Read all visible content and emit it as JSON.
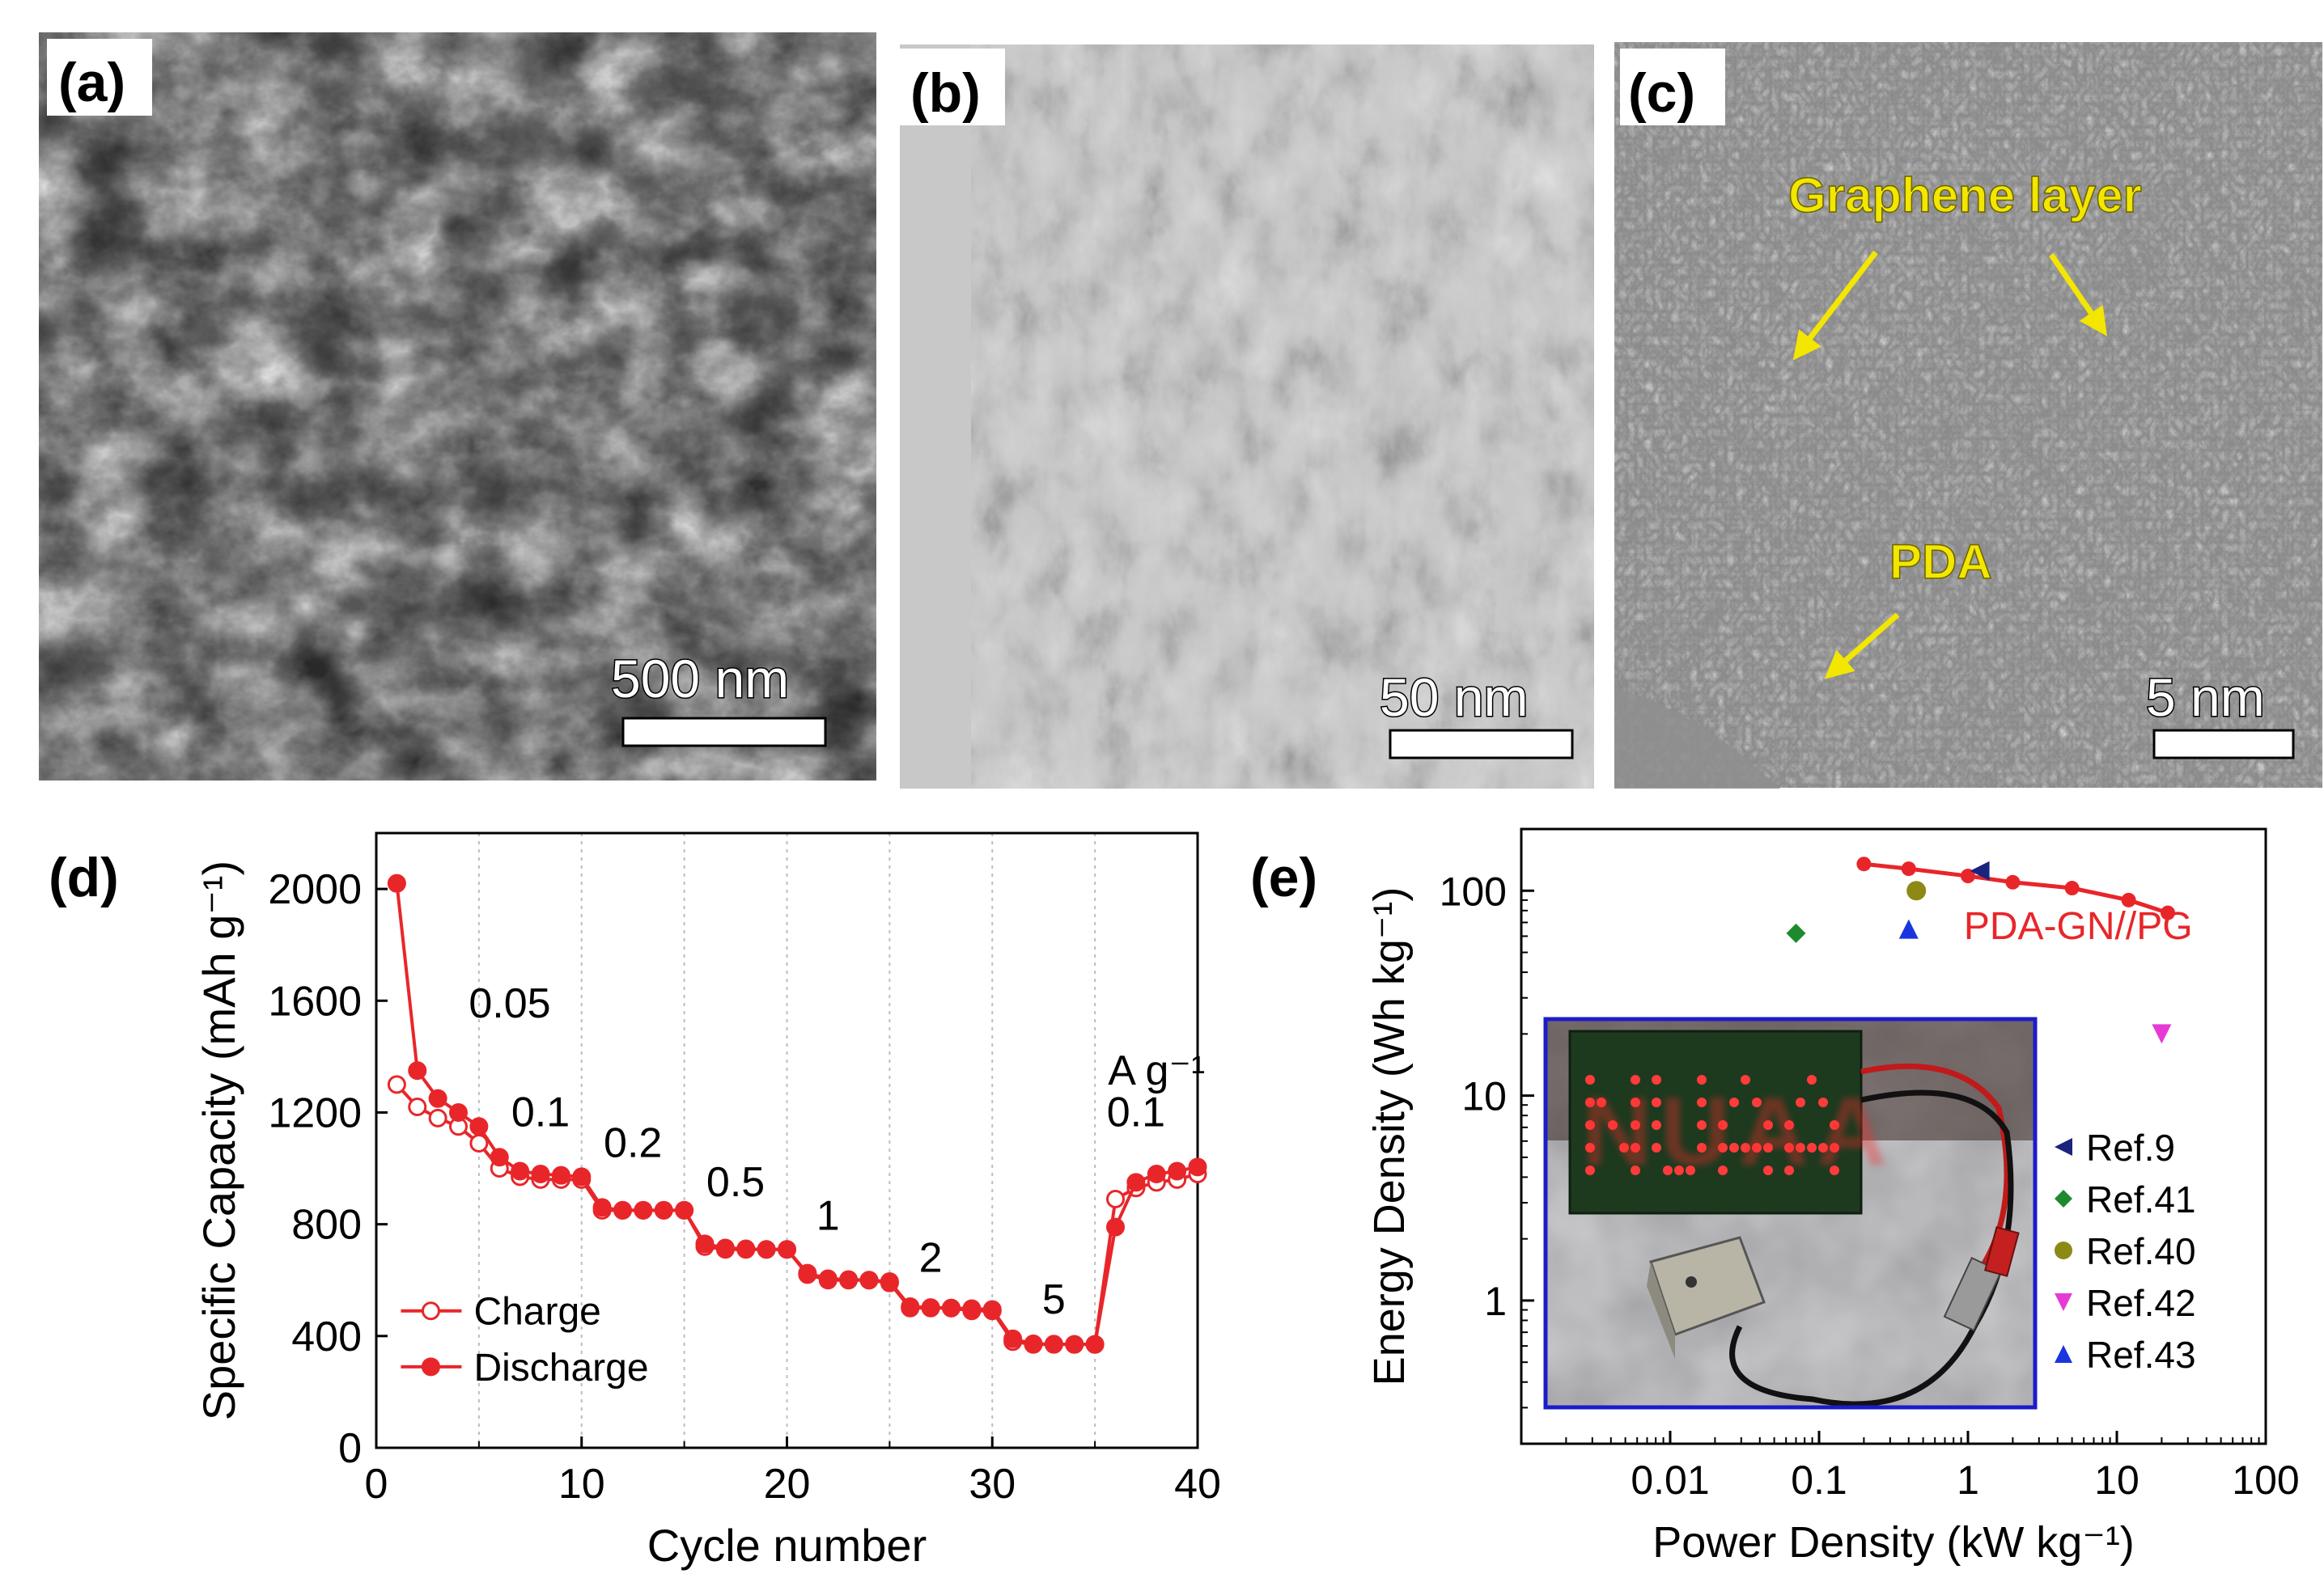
{
  "figure": {
    "panel_labels": {
      "a": "(a)",
      "b": "(b)",
      "c": "(c)",
      "d": "(d)",
      "e": "(e)"
    },
    "micrographs": {
      "a": {
        "scale_bar": "500 nm"
      },
      "b": {
        "scale_bar": "50 nm"
      },
      "c": {
        "scale_bar": "5 nm",
        "annotations": [
          "Graphene layer",
          "PDA"
        ]
      }
    },
    "inset_photo_text": "NUAA"
  },
  "chart_data": [
    {
      "type": "line",
      "xlabel": "Cycle number",
      "ylabel": "Specific Capacity (mAh g⁻¹)",
      "xlim": [
        0,
        40
      ],
      "ylim": [
        0,
        2200
      ],
      "xticks": [
        0,
        10,
        20,
        30,
        40
      ],
      "yticks": [
        0,
        400,
        800,
        1200,
        1600,
        2000
      ],
      "rate_labels": [
        "0.05",
        "0.1",
        "0.2",
        "0.5",
        "1",
        "2",
        "5",
        "0.1"
      ],
      "unit_label": "A g⁻¹",
      "legend_position": "bottom-left",
      "grid": "vertical dotted lines every 5 cycles",
      "x": [
        1,
        2,
        3,
        4,
        5,
        6,
        7,
        8,
        9,
        10,
        11,
        12,
        13,
        14,
        15,
        16,
        17,
        18,
        19,
        20,
        21,
        22,
        23,
        24,
        25,
        26,
        27,
        28,
        29,
        30,
        31,
        32,
        33,
        34,
        35,
        36,
        37,
        38,
        39,
        40
      ],
      "series": [
        {
          "name": "Charge",
          "marker": "open-circle",
          "color": "#e8262a",
          "values": [
            1300,
            1220,
            1180,
            1150,
            1090,
            1000,
            970,
            960,
            960,
            960,
            850,
            850,
            850,
            850,
            850,
            720,
            710,
            710,
            710,
            710,
            620,
            600,
            600,
            600,
            590,
            500,
            500,
            500,
            490,
            490,
            380,
            370,
            370,
            370,
            370,
            890,
            930,
            950,
            960,
            980
          ]
        },
        {
          "name": "Discharge",
          "marker": "filled-circle",
          "color": "#e8262a",
          "values": [
            2020,
            1350,
            1250,
            1200,
            1150,
            1040,
            990,
            980,
            975,
            970,
            860,
            850,
            850,
            850,
            850,
            730,
            715,
            712,
            710,
            710,
            625,
            605,
            602,
            600,
            595,
            505,
            502,
            500,
            498,
            495,
            390,
            372,
            371,
            370,
            370,
            790,
            950,
            980,
            990,
            1005
          ]
        }
      ]
    },
    {
      "type": "scatter",
      "xlabel": "Power Density (kW kg⁻¹)",
      "ylabel": "Energy Density (Wh kg⁻¹)",
      "xscale": "log",
      "yscale": "log",
      "xlim": [
        0.001,
        100
      ],
      "ylim": [
        0.2,
        200
      ],
      "xticks": [
        0.01,
        0.1,
        1,
        10,
        100
      ],
      "xtick_labels": [
        "0.01",
        "0.1",
        "1",
        "10",
        "100"
      ],
      "yticks": [
        1,
        10,
        100
      ],
      "ytick_labels": [
        "1",
        "10",
        "100"
      ],
      "legend_position": "right",
      "main_series": {
        "name": "PDA-GN//PG",
        "color": "#e8262a",
        "x": [
          0.2,
          0.4,
          1,
          2,
          5,
          12,
          22
        ],
        "y": [
          135,
          128,
          118,
          110,
          103,
          90,
          78
        ]
      },
      "references": [
        {
          "name": "Ref.9",
          "marker": "left-triangle",
          "color": "#1a237e",
          "x": 1.2,
          "y": 125
        },
        {
          "name": "Ref.41",
          "marker": "diamond",
          "color": "#1e8a2e",
          "x": 0.07,
          "y": 62
        },
        {
          "name": "Ref.40",
          "marker": "circle",
          "color": "#8c8a14",
          "x": 0.45,
          "y": 100
        },
        {
          "name": "Ref.42",
          "marker": "down-triangle",
          "color": "#e53ad6",
          "x": 20,
          "y": 20
        },
        {
          "name": "Ref.43",
          "marker": "up-triangle",
          "color": "#1a35e0",
          "x": 0.4,
          "y": 65
        }
      ]
    }
  ]
}
